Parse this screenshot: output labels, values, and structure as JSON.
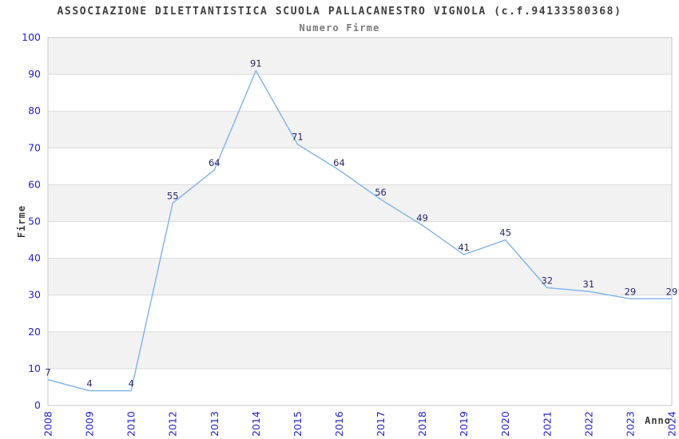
{
  "header": {
    "title": "ASSOCIAZIONE DILETTANTISTICA SCUOLA PALLACANESTRO VIGNOLA (c.f.94133580368)",
    "subtitle": "Numero Firme"
  },
  "chart_data": {
    "type": "line",
    "title": "ASSOCIAZIONE DILETTANTISTICA SCUOLA PALLACANESTRO VIGNOLA (c.f.94133580368)",
    "subtitle": "Numero Firme",
    "x": [
      "2008",
      "2009",
      "2010",
      "2012",
      "2013",
      "2014",
      "2015",
      "2016",
      "2017",
      "2018",
      "2019",
      "2020",
      "2021",
      "2022",
      "2023",
      "2024"
    ],
    "values": [
      7,
      4,
      4,
      55,
      64,
      91,
      71,
      64,
      56,
      49,
      41,
      45,
      32,
      31,
      29,
      29
    ],
    "series_name": "Numero Firme",
    "xlabel": "Anno",
    "ylabel": "Firme",
    "ylim": [
      0,
      100
    ],
    "ytick_step": 10,
    "grid": "horizontal-bands-alternating",
    "legend_position": "none",
    "colors": {
      "line": "#7eb3e8",
      "data_label": "#28286a",
      "tick_label": "#2323cc",
      "axis_title": "#3a3a3a",
      "band_dark": "#f2f2f2",
      "band_light": "#ffffff",
      "gridline": "#dcdcdc",
      "plot_border": "#c9c9c9",
      "background": "#ffffff"
    }
  }
}
